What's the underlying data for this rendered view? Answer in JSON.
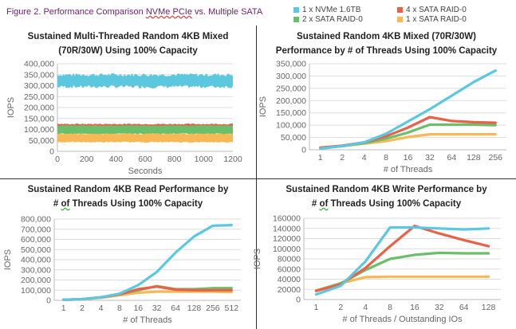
{
  "figure_title_pre": "Figure 2. Performance Comparison ",
  "figure_title_mark": "NVMe PCIe",
  "figure_title_post": " vs. Multiple SATA",
  "legend": [
    {
      "label": "1 x NVMe 1.6TB",
      "color": "#5bc8df"
    },
    {
      "label": "4 x SATA RAID-0",
      "color": "#e8624a"
    },
    {
      "label": "2 x SATA RAID-0",
      "color": "#6cbf6a"
    },
    {
      "label": "1 x SATA RAID-0",
      "color": "#f7b955"
    }
  ],
  "chart_data": [
    {
      "type": "area",
      "title_line1": "Sustained Multi-Threaded Random 4KB Mixed",
      "title_line2": "(70R/30W) Using 100% Capacity",
      "xlabel": "Seconds",
      "ylabel": "IOPS",
      "xlim": [
        0,
        1200
      ],
      "ylim": [
        0,
        400000
      ],
      "xticks": [
        "0",
        "200",
        "400",
        "600",
        "800",
        "1000",
        "1200"
      ],
      "yticks": [
        "0",
        "50,000",
        "100,000",
        "150,000",
        "200,000",
        "250,000",
        "300,000",
        "350,000",
        "400,000"
      ],
      "grid": true,
      "series": [
        {
          "name": "1 x NVMe 1.6TB",
          "color": "#5bc8df",
          "band": [
            295000,
            350000
          ]
        },
        {
          "name": "4 x SATA RAID-0",
          "color": "#e8624a",
          "band": [
            115000,
            125000
          ]
        },
        {
          "name": "2 x SATA RAID-0",
          "color": "#6cbf6a",
          "band": [
            80000,
            118000
          ]
        },
        {
          "name": "1 x SATA RAID-0",
          "color": "#f7b955",
          "band": [
            42000,
            80000
          ]
        }
      ]
    },
    {
      "type": "line",
      "title_line1": "Sustained Random 4KB Mixed (70R/30W)",
      "title_line2": "Performance by # of Threads Using 100% Capacity",
      "xlabel": "# of Threads",
      "ylabel": "IOPS",
      "categories": [
        "1",
        "2",
        "4",
        "8",
        "16",
        "32",
        "64",
        "128",
        "256"
      ],
      "ylim": [
        0,
        350000
      ],
      "yticks": [
        "0",
        "50,000",
        "100,000",
        "150,000",
        "200,000",
        "250,000",
        "300,000",
        "350,000"
      ],
      "grid": true,
      "series": [
        {
          "name": "1 x NVMe 1.6TB",
          "color": "#5bc8df",
          "values": [
            5000,
            15000,
            30000,
            65000,
            115000,
            165000,
            220000,
            275000,
            322000
          ]
        },
        {
          "name": "4 x SATA RAID-0",
          "color": "#e8624a",
          "values": [
            8000,
            17000,
            30000,
            55000,
            90000,
            133000,
            117000,
            112000,
            110000
          ]
        },
        {
          "name": "2 x SATA RAID-0",
          "color": "#6cbf6a",
          "values": [
            8000,
            15000,
            27000,
            45000,
            70000,
            102000,
            102000,
            102000,
            100000
          ]
        },
        {
          "name": "1 x SATA RAID-0",
          "color": "#f7b955",
          "values": [
            9000,
            15000,
            25000,
            35000,
            52000,
            63000,
            63000,
            63000,
            63000
          ]
        }
      ]
    },
    {
      "type": "line",
      "title_line1": "Sustained Random 4KB Read Performance by",
      "title_line2_pre": "# ",
      "title_line2_mark": "of",
      "title_line2_post": " Threads Using 100% Capacity",
      "xlabel": "# of Threads",
      "ylabel": "IOPS",
      "categories": [
        "1",
        "2",
        "4",
        "8",
        "16",
        "32",
        "64",
        "128",
        "256",
        "512"
      ],
      "ylim": [
        0,
        800000
      ],
      "yticks": [
        "0",
        "100,000",
        "200,000",
        "300,000",
        "400,000",
        "500,000",
        "600,000",
        "700,000",
        "800,000"
      ],
      "grid": true,
      "series": [
        {
          "name": "1 x NVMe 1.6TB",
          "color": "#5bc8df",
          "values": [
            5000,
            12000,
            30000,
            65000,
            150000,
            280000,
            470000,
            630000,
            735000,
            740000
          ]
        },
        {
          "name": "4 x SATA RAID-0",
          "color": "#e8624a",
          "values": [
            5000,
            12000,
            30000,
            60000,
            110000,
            135000,
            105000,
            100000,
            100000,
            100000
          ]
        },
        {
          "name": "2 x SATA RAID-0",
          "color": "#6cbf6a",
          "values": [
            5000,
            12000,
            30000,
            60000,
            100000,
            140000,
            110000,
            110000,
            120000,
            120000
          ]
        },
        {
          "name": "1 x SATA RAID-0",
          "color": "#f7b955",
          "values": [
            5000,
            10000,
            25000,
            50000,
            75000,
            85000,
            85000,
            85000,
            85000,
            80000
          ]
        }
      ]
    },
    {
      "type": "line",
      "title_line1": "Sustained Random 4KB Write Performance by",
      "title_line2_pre": "# ",
      "title_line2_mark": "of",
      "title_line2_post": " Threads Using 100% Capacity",
      "xlabel": "# of Threads / Outstanding IOs",
      "ylabel": "IOPS",
      "categories": [
        "1",
        "2",
        "4",
        "8",
        "16",
        "32",
        "64",
        "128"
      ],
      "ylim": [
        0,
        160000
      ],
      "yticks": [
        "0",
        "20000",
        "40000",
        "60000",
        "80000",
        "100000",
        "120000",
        "140000",
        "160000"
      ],
      "grid": true,
      "series": [
        {
          "name": "1 x NVMe 1.6TB",
          "color": "#5bc8df",
          "values": [
            10000,
            27000,
            75000,
            142000,
            142000,
            140000,
            138000,
            140000
          ]
        },
        {
          "name": "4 x SATA RAID-0",
          "color": "#e8624a",
          "values": [
            17000,
            30000,
            62000,
            105000,
            145000,
            130000,
            117000,
            105000
          ]
        },
        {
          "name": "2 x SATA RAID-0",
          "color": "#6cbf6a",
          "values": [
            17000,
            32000,
            58000,
            80000,
            88000,
            92000,
            91000,
            91000
          ]
        },
        {
          "name": "1 x SATA RAID-0",
          "color": "#f7b955",
          "values": [
            18000,
            32000,
            44000,
            45000,
            45000,
            45000,
            45000,
            45000
          ]
        }
      ]
    }
  ]
}
